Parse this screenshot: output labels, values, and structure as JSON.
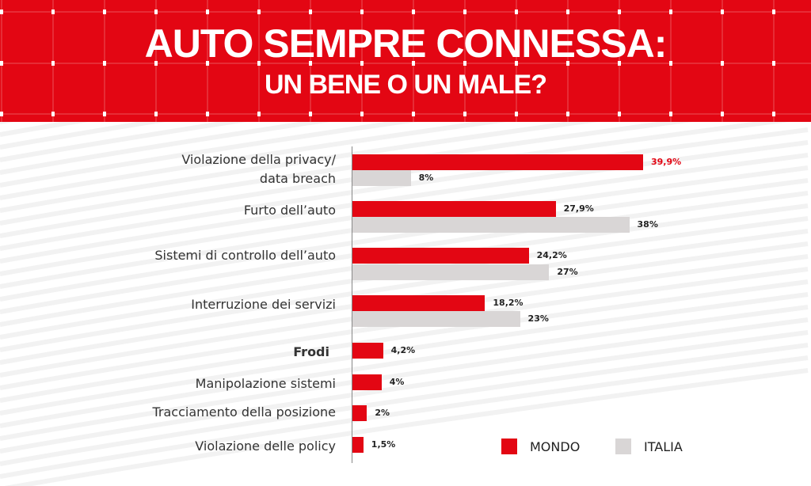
{
  "header": {
    "title": "AUTO SEMPRE CONNESSA:",
    "subtitle": "UN BENE O UN MALE?"
  },
  "colors": {
    "mondo": "#e30613",
    "italia": "#d9d6d6",
    "header": "#e30613"
  },
  "chart_data": {
    "type": "bar",
    "orientation": "horizontal",
    "title": "AUTO SEMPRE CONNESSA: UN BENE O UN MALE?",
    "categories": [
      "Violazione della privacy/ data breach",
      "Furto dell’auto",
      "Sistemi di controllo dell’auto",
      "Interruzione dei servizi",
      "Frodi",
      "Manipolazione sistemi",
      "Tracciamento della posizione",
      "Violazione delle policy"
    ],
    "series": [
      {
        "name": "MONDO",
        "values": [
          39.9,
          27.9,
          24.2,
          18.2,
          4.2,
          4,
          2,
          1.5
        ],
        "labels": [
          "39,9%",
          "27,9%",
          "24,2%",
          "18,2%",
          "4,2%",
          "4%",
          "2%",
          "1,5%"
        ]
      },
      {
        "name": "ITALIA",
        "values": [
          8,
          38,
          27,
          23,
          null,
          null,
          null,
          null
        ],
        "labels": [
          "8%",
          "38%",
          "27%",
          "23%",
          null,
          null,
          null,
          null
        ]
      }
    ],
    "legend": "bottom-right",
    "xlim": [
      0,
      40
    ]
  }
}
